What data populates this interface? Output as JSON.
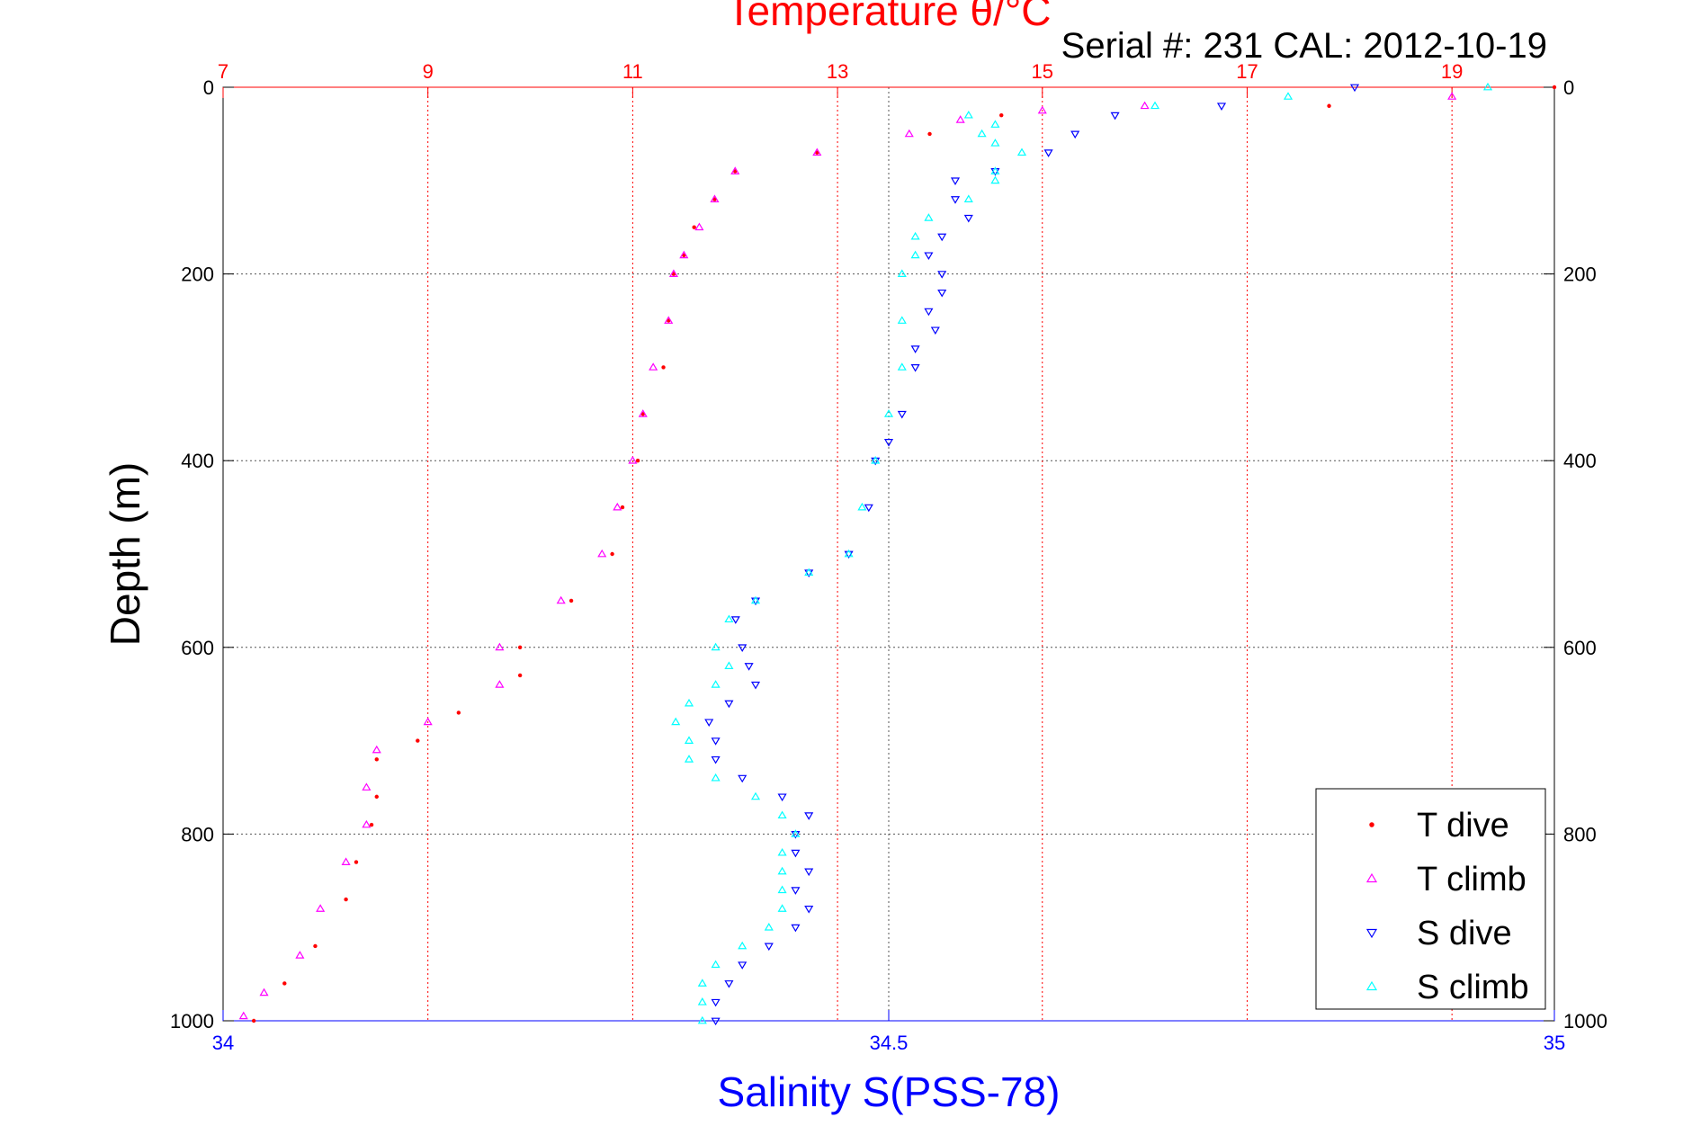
{
  "chart_data": {
    "type": "scatter",
    "title": "Temperature θ/°C",
    "subtitle": "Serial #: 231  CAL: 2012-10-19",
    "ylabel": "Depth (m)",
    "xlabel_bottom": "Salinity S(PSS-78)",
    "ylim": [
      0,
      1000
    ],
    "y_reversed": true,
    "y_ticks": [
      "0",
      "200",
      "400",
      "600",
      "800",
      "1000"
    ],
    "y_tick_values": [
      0,
      200,
      400,
      600,
      800,
      1000
    ],
    "x_top": {
      "name": "Temperature",
      "range": [
        7,
        20
      ],
      "ticks": [
        "7",
        "9",
        "11",
        "13",
        "15",
        "17",
        "19"
      ],
      "tick_values": [
        7,
        9,
        11,
        13,
        15,
        17,
        19
      ],
      "color": "#ff0000"
    },
    "x_bottom": {
      "name": "Salinity",
      "range": [
        34,
        35
      ],
      "ticks": [
        "34",
        "34.5",
        "35"
      ],
      "tick_values": [
        34,
        34.5,
        35
      ],
      "color": "#0000ff"
    },
    "grid": true,
    "legend_position": "bottom-right",
    "series": [
      {
        "name": "T dive",
        "axis": "top",
        "color": "#ff0000",
        "marker": "dot",
        "points": [
          [
            20.0,
            0
          ],
          [
            17.8,
            20
          ],
          [
            14.6,
            30
          ],
          [
            13.9,
            50
          ],
          [
            12.8,
            70
          ],
          [
            12.0,
            90
          ],
          [
            11.8,
            120
          ],
          [
            11.6,
            150
          ],
          [
            11.5,
            180
          ],
          [
            11.4,
            200
          ],
          [
            11.35,
            250
          ],
          [
            11.3,
            300
          ],
          [
            11.1,
            350
          ],
          [
            11.05,
            400
          ],
          [
            10.9,
            450
          ],
          [
            10.8,
            500
          ],
          [
            10.4,
            550
          ],
          [
            9.9,
            600
          ],
          [
            9.9,
            630
          ],
          [
            9.3,
            670
          ],
          [
            8.9,
            700
          ],
          [
            8.5,
            720
          ],
          [
            8.5,
            760
          ],
          [
            8.45,
            790
          ],
          [
            8.3,
            830
          ],
          [
            8.2,
            870
          ],
          [
            7.9,
            920
          ],
          [
            7.6,
            960
          ],
          [
            7.3,
            1000
          ]
        ]
      },
      {
        "name": "T climb",
        "axis": "top",
        "color": "#ff00ff",
        "marker": "triangle-up",
        "points": [
          [
            19.0,
            10
          ],
          [
            16.0,
            20
          ],
          [
            15.0,
            25
          ],
          [
            14.2,
            35
          ],
          [
            13.7,
            50
          ],
          [
            12.8,
            70
          ],
          [
            12.0,
            90
          ],
          [
            11.8,
            120
          ],
          [
            11.65,
            150
          ],
          [
            11.5,
            180
          ],
          [
            11.4,
            200
          ],
          [
            11.35,
            250
          ],
          [
            11.2,
            300
          ],
          [
            11.1,
            350
          ],
          [
            11.0,
            400
          ],
          [
            10.85,
            450
          ],
          [
            10.7,
            500
          ],
          [
            10.3,
            550
          ],
          [
            9.7,
            600
          ],
          [
            9.7,
            640
          ],
          [
            9.0,
            680
          ],
          [
            8.5,
            710
          ],
          [
            8.4,
            750
          ],
          [
            8.4,
            790
          ],
          [
            8.2,
            830
          ],
          [
            7.95,
            880
          ],
          [
            7.75,
            930
          ],
          [
            7.4,
            970
          ],
          [
            7.2,
            995
          ]
        ]
      },
      {
        "name": "S dive",
        "axis": "bottom",
        "color": "#0000ff",
        "marker": "triangle-down",
        "points": [
          [
            34.85,
            0
          ],
          [
            34.75,
            20
          ],
          [
            34.67,
            30
          ],
          [
            34.64,
            50
          ],
          [
            34.62,
            70
          ],
          [
            34.58,
            90
          ],
          [
            34.55,
            100
          ],
          [
            34.55,
            120
          ],
          [
            34.56,
            140
          ],
          [
            34.54,
            160
          ],
          [
            34.53,
            180
          ],
          [
            34.54,
            200
          ],
          [
            34.54,
            220
          ],
          [
            34.53,
            240
          ],
          [
            34.535,
            260
          ],
          [
            34.52,
            280
          ],
          [
            34.52,
            300
          ],
          [
            34.51,
            350
          ],
          [
            34.5,
            380
          ],
          [
            34.49,
            400
          ],
          [
            34.485,
            450
          ],
          [
            34.47,
            500
          ],
          [
            34.44,
            520
          ],
          [
            34.4,
            550
          ],
          [
            34.385,
            570
          ],
          [
            34.39,
            600
          ],
          [
            34.395,
            620
          ],
          [
            34.4,
            640
          ],
          [
            34.38,
            660
          ],
          [
            34.365,
            680
          ],
          [
            34.37,
            700
          ],
          [
            34.37,
            720
          ],
          [
            34.39,
            740
          ],
          [
            34.42,
            760
          ],
          [
            34.44,
            780
          ],
          [
            34.43,
            800
          ],
          [
            34.43,
            820
          ],
          [
            34.44,
            840
          ],
          [
            34.43,
            860
          ],
          [
            34.44,
            880
          ],
          [
            34.43,
            900
          ],
          [
            34.41,
            920
          ],
          [
            34.39,
            940
          ],
          [
            34.38,
            960
          ],
          [
            34.37,
            980
          ],
          [
            34.37,
            1000
          ]
        ]
      },
      {
        "name": "S climb",
        "axis": "bottom",
        "color": "#00ffff",
        "marker": "triangle-up",
        "points": [
          [
            34.95,
            0
          ],
          [
            34.8,
            10
          ],
          [
            34.7,
            20
          ],
          [
            34.56,
            30
          ],
          [
            34.58,
            40
          ],
          [
            34.57,
            50
          ],
          [
            34.58,
            60
          ],
          [
            34.6,
            70
          ],
          [
            34.58,
            90
          ],
          [
            34.58,
            100
          ],
          [
            34.56,
            120
          ],
          [
            34.53,
            140
          ],
          [
            34.52,
            160
          ],
          [
            34.52,
            180
          ],
          [
            34.51,
            200
          ],
          [
            34.51,
            250
          ],
          [
            34.51,
            300
          ],
          [
            34.5,
            350
          ],
          [
            34.49,
            400
          ],
          [
            34.48,
            450
          ],
          [
            34.47,
            500
          ],
          [
            34.44,
            520
          ],
          [
            34.4,
            550
          ],
          [
            34.38,
            570
          ],
          [
            34.37,
            600
          ],
          [
            34.38,
            620
          ],
          [
            34.37,
            640
          ],
          [
            34.35,
            660
          ],
          [
            34.34,
            680
          ],
          [
            34.35,
            700
          ],
          [
            34.35,
            720
          ],
          [
            34.37,
            740
          ],
          [
            34.4,
            760
          ],
          [
            34.42,
            780
          ],
          [
            34.43,
            800
          ],
          [
            34.42,
            820
          ],
          [
            34.42,
            840
          ],
          [
            34.42,
            860
          ],
          [
            34.42,
            880
          ],
          [
            34.41,
            900
          ],
          [
            34.39,
            920
          ],
          [
            34.37,
            940
          ],
          [
            34.36,
            960
          ],
          [
            34.36,
            980
          ],
          [
            34.36,
            1000
          ]
        ]
      }
    ]
  }
}
